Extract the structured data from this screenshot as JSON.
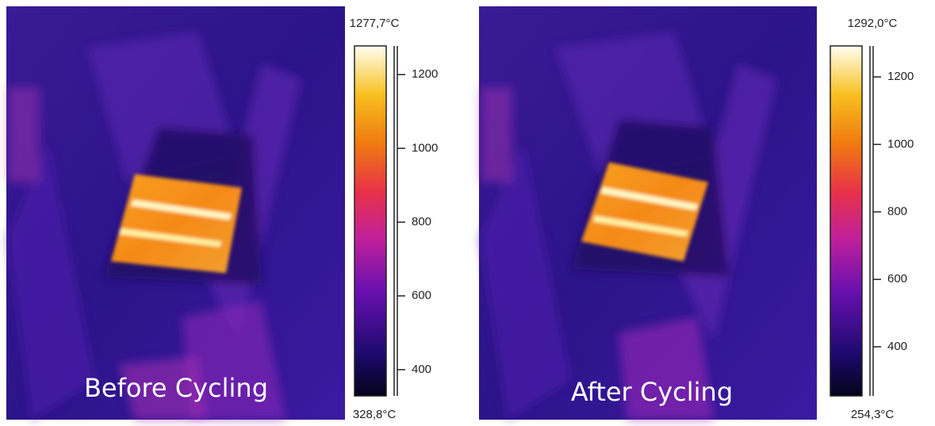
{
  "panels": [
    {
      "caption": "Before Cycling",
      "max": {
        "value": 1277.7,
        "label": "1277,7°C"
      },
      "min": {
        "value": 328.8,
        "label": "328,8°C"
      },
      "ticks": [
        400,
        600,
        800,
        1000,
        1200
      ]
    },
    {
      "caption": "After Cycling",
      "max": {
        "value": 1292.0,
        "label": "1292,0°C"
      },
      "min": {
        "value": 254.3,
        "label": "254,3°C"
      },
      "ticks": [
        400,
        600,
        800,
        1000,
        1200
      ]
    }
  ]
}
